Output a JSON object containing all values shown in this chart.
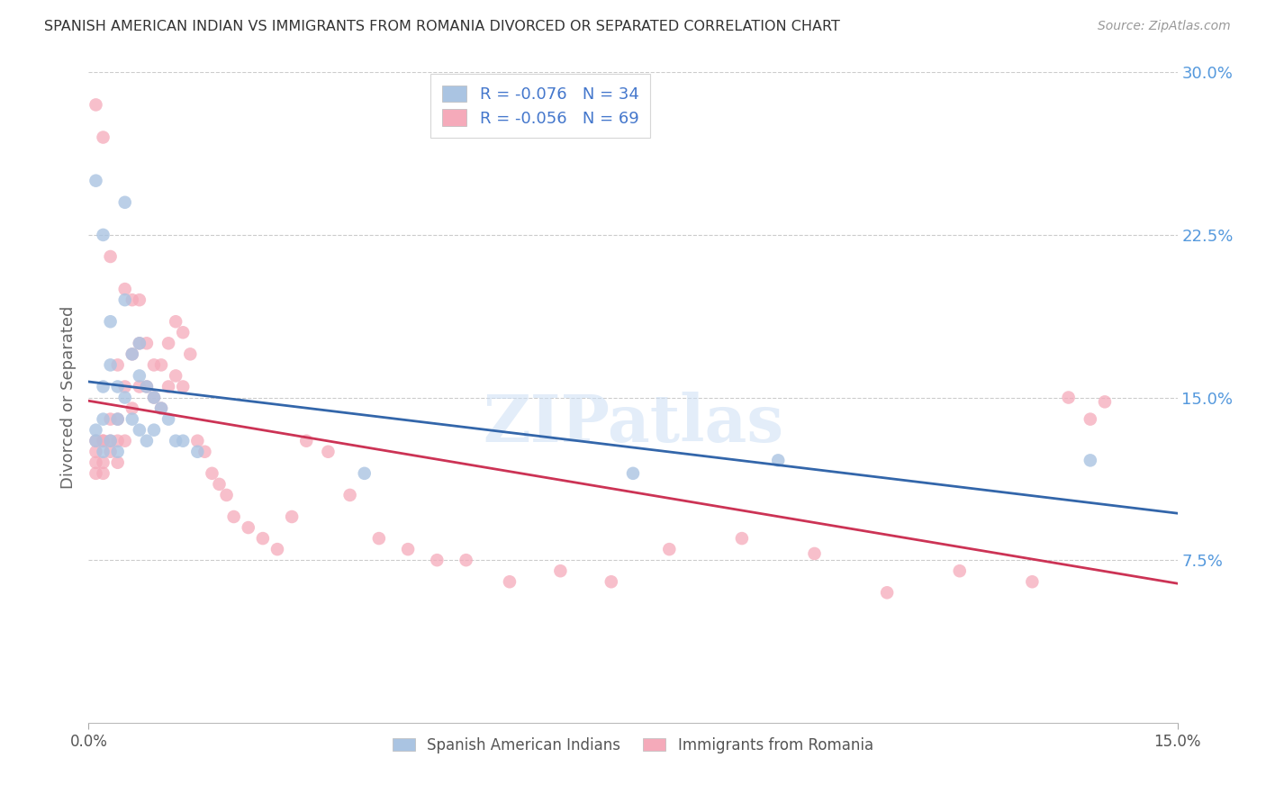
{
  "title": "SPANISH AMERICAN INDIAN VS IMMIGRANTS FROM ROMANIA DIVORCED OR SEPARATED CORRELATION CHART",
  "source": "Source: ZipAtlas.com",
  "ylabel": "Divorced or Separated",
  "xlim": [
    0.0,
    0.15
  ],
  "ylim": [
    0.0,
    0.3
  ],
  "yticks": [
    0.075,
    0.15,
    0.225,
    0.3
  ],
  "ytick_labels": [
    "7.5%",
    "15.0%",
    "22.5%",
    "30.0%"
  ],
  "xticks": [
    0.0,
    0.15
  ],
  "xtick_labels": [
    "0.0%",
    "15.0%"
  ],
  "blue_R": -0.076,
  "blue_N": 34,
  "pink_R": -0.056,
  "pink_N": 69,
  "blue_color": "#aac4e2",
  "pink_color": "#f5aaba",
  "blue_line_color": "#3366aa",
  "pink_line_color": "#cc3355",
  "blue_x": [
    0.001,
    0.001,
    0.001,
    0.002,
    0.002,
    0.002,
    0.002,
    0.003,
    0.003,
    0.003,
    0.004,
    0.004,
    0.004,
    0.005,
    0.005,
    0.005,
    0.006,
    0.006,
    0.007,
    0.007,
    0.007,
    0.008,
    0.008,
    0.009,
    0.009,
    0.01,
    0.011,
    0.012,
    0.013,
    0.015,
    0.038,
    0.075,
    0.095,
    0.138
  ],
  "blue_y": [
    0.25,
    0.135,
    0.13,
    0.225,
    0.155,
    0.14,
    0.125,
    0.185,
    0.165,
    0.13,
    0.155,
    0.14,
    0.125,
    0.24,
    0.195,
    0.15,
    0.17,
    0.14,
    0.175,
    0.16,
    0.135,
    0.155,
    0.13,
    0.15,
    0.135,
    0.145,
    0.14,
    0.13,
    0.13,
    0.125,
    0.115,
    0.115,
    0.121,
    0.121
  ],
  "pink_x": [
    0.001,
    0.001,
    0.001,
    0.001,
    0.001,
    0.002,
    0.002,
    0.002,
    0.002,
    0.002,
    0.003,
    0.003,
    0.003,
    0.003,
    0.004,
    0.004,
    0.004,
    0.004,
    0.005,
    0.005,
    0.005,
    0.006,
    0.006,
    0.006,
    0.007,
    0.007,
    0.007,
    0.008,
    0.008,
    0.009,
    0.009,
    0.01,
    0.01,
    0.011,
    0.011,
    0.012,
    0.012,
    0.013,
    0.013,
    0.014,
    0.015,
    0.016,
    0.017,
    0.018,
    0.019,
    0.02,
    0.022,
    0.024,
    0.026,
    0.028,
    0.03,
    0.033,
    0.036,
    0.04,
    0.044,
    0.048,
    0.052,
    0.058,
    0.065,
    0.072,
    0.08,
    0.09,
    0.1,
    0.11,
    0.12,
    0.13,
    0.135,
    0.138,
    0.14
  ],
  "pink_y": [
    0.13,
    0.12,
    0.115,
    0.125,
    0.285,
    0.13,
    0.12,
    0.13,
    0.115,
    0.27,
    0.14,
    0.13,
    0.125,
    0.215,
    0.14,
    0.13,
    0.165,
    0.12,
    0.2,
    0.155,
    0.13,
    0.195,
    0.17,
    0.145,
    0.195,
    0.175,
    0.155,
    0.175,
    0.155,
    0.165,
    0.15,
    0.165,
    0.145,
    0.175,
    0.155,
    0.185,
    0.16,
    0.18,
    0.155,
    0.17,
    0.13,
    0.125,
    0.115,
    0.11,
    0.105,
    0.095,
    0.09,
    0.085,
    0.08,
    0.095,
    0.13,
    0.125,
    0.105,
    0.085,
    0.08,
    0.075,
    0.075,
    0.065,
    0.07,
    0.065,
    0.08,
    0.085,
    0.078,
    0.06,
    0.07,
    0.065,
    0.15,
    0.14,
    0.148
  ]
}
